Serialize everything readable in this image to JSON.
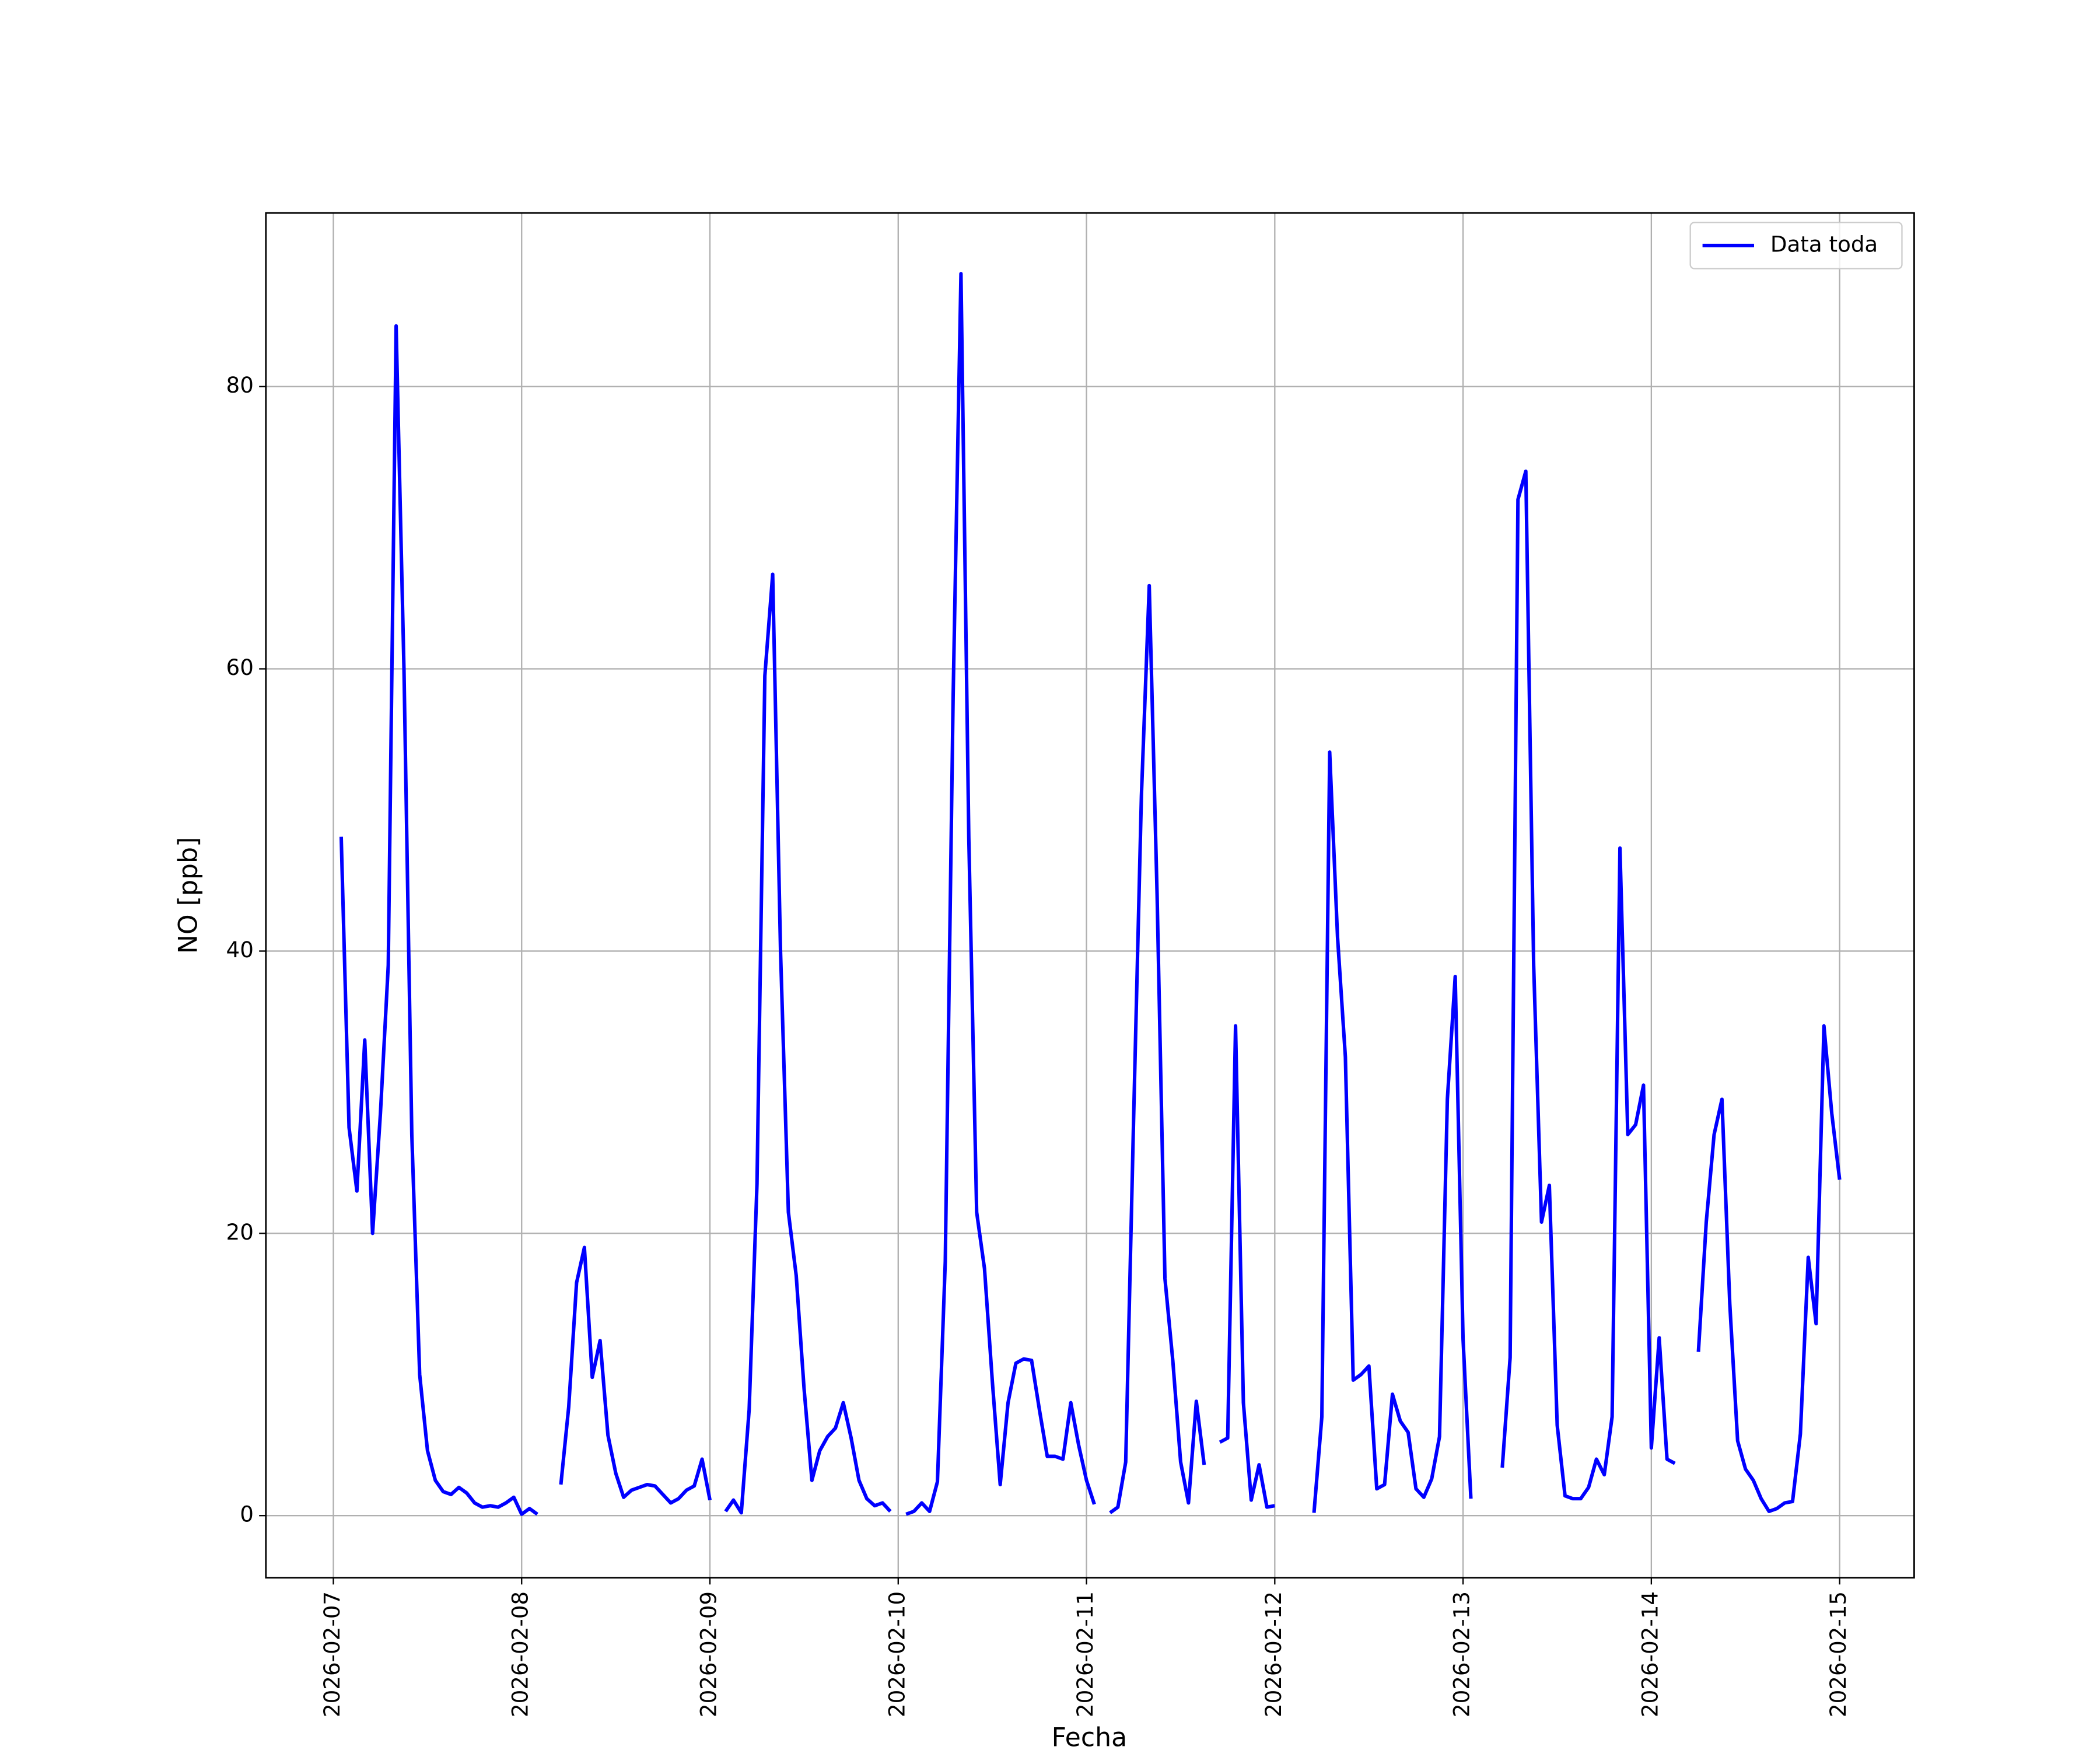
{
  "chart_data": {
    "type": "line",
    "x_label": "Fecha",
    "y_label": "NO [ppb]",
    "xlim": [
      "2026-02-06T15:24",
      "2026-02-15T09:30"
    ],
    "xticks": [
      "2026-02-07",
      "2026-02-08",
      "2026-02-09",
      "2026-02-10",
      "2026-02-11",
      "2026-02-12",
      "2026-02-13",
      "2026-02-14",
      "2026-02-15"
    ],
    "ylim": [
      -4.4,
      92.3
    ],
    "yticks": [
      0,
      20,
      40,
      60,
      80
    ],
    "grid": true,
    "legend": "upper right",
    "x": [
      "2026-02-07T01:00",
      "2026-02-07T02:00",
      "2026-02-07T03:00",
      "2026-02-07T04:00",
      "2026-02-07T05:00",
      "2026-02-07T06:00",
      "2026-02-07T07:00",
      "2026-02-07T08:00",
      "2026-02-07T09:00",
      "2026-02-07T10:00",
      "2026-02-07T11:00",
      "2026-02-07T12:00",
      "2026-02-07T13:00",
      "2026-02-07T14:00",
      "2026-02-07T15:00",
      "2026-02-07T16:00",
      "2026-02-07T17:00",
      "2026-02-07T18:00",
      "2026-02-07T19:00",
      "2026-02-07T20:00",
      "2026-02-07T21:00",
      "2026-02-07T22:00",
      "2026-02-07T23:00",
      "2026-02-08T00:00",
      "2026-02-08T01:00",
      "2026-02-08T02:00",
      "2026-02-08T03:00",
      "2026-02-08T04:00",
      "2026-02-08T05:00",
      "2026-02-08T06:00",
      "2026-02-08T07:00",
      "2026-02-08T08:00",
      "2026-02-08T09:00",
      "2026-02-08T10:00",
      "2026-02-08T11:00",
      "2026-02-08T12:00",
      "2026-02-08T13:00",
      "2026-02-08T14:00",
      "2026-02-08T15:00",
      "2026-02-08T16:00",
      "2026-02-08T17:00",
      "2026-02-08T18:00",
      "2026-02-08T19:00",
      "2026-02-08T20:00",
      "2026-02-08T21:00",
      "2026-02-08T22:00",
      "2026-02-08T23:00",
      "2026-02-09T00:00",
      "2026-02-09T01:00",
      "2026-02-09T02:00",
      "2026-02-09T03:00",
      "2026-02-09T04:00",
      "2026-02-09T05:00",
      "2026-02-09T06:00",
      "2026-02-09T07:00",
      "2026-02-09T08:00",
      "2026-02-09T09:00",
      "2026-02-09T10:00",
      "2026-02-09T11:00",
      "2026-02-09T12:00",
      "2026-02-09T13:00",
      "2026-02-09T14:00",
      "2026-02-09T15:00",
      "2026-02-09T16:00",
      "2026-02-09T17:00",
      "2026-02-09T18:00",
      "2026-02-09T19:00",
      "2026-02-09T20:00",
      "2026-02-09T21:00",
      "2026-02-09T22:00",
      "2026-02-09T23:00",
      "2026-02-10T00:00",
      "2026-02-10T01:00",
      "2026-02-10T02:00",
      "2026-02-10T03:00",
      "2026-02-10T04:00",
      "2026-02-10T05:00",
      "2026-02-10T06:00",
      "2026-02-10T07:00",
      "2026-02-10T08:00",
      "2026-02-10T09:00",
      "2026-02-10T10:00",
      "2026-02-10T11:00",
      "2026-02-10T12:00",
      "2026-02-10T13:00",
      "2026-02-10T14:00",
      "2026-02-10T15:00",
      "2026-02-10T16:00",
      "2026-02-10T17:00",
      "2026-02-10T18:00",
      "2026-02-10T19:00",
      "2026-02-10T20:00",
      "2026-02-10T21:00",
      "2026-02-10T22:00",
      "2026-02-10T23:00",
      "2026-02-11T00:00",
      "2026-02-11T01:00",
      "2026-02-11T02:00",
      "2026-02-11T03:00",
      "2026-02-11T04:00",
      "2026-02-11T05:00",
      "2026-02-11T06:00",
      "2026-02-11T07:00",
      "2026-02-11T08:00",
      "2026-02-11T09:00",
      "2026-02-11T10:00",
      "2026-02-11T11:00",
      "2026-02-11T12:00",
      "2026-02-11T13:00",
      "2026-02-11T14:00",
      "2026-02-11T15:00",
      "2026-02-11T16:00",
      "2026-02-11T17:00",
      "2026-02-11T18:00",
      "2026-02-11T19:00",
      "2026-02-11T20:00",
      "2026-02-11T21:00",
      "2026-02-11T22:00",
      "2026-02-11T23:00",
      "2026-02-12T00:00",
      "2026-02-12T01:00",
      "2026-02-12T02:00",
      "2026-02-12T03:00",
      "2026-02-12T04:00",
      "2026-02-12T05:00",
      "2026-02-12T06:00",
      "2026-02-12T07:00",
      "2026-02-12T08:00",
      "2026-02-12T09:00",
      "2026-02-12T10:00",
      "2026-02-12T11:00",
      "2026-02-12T12:00",
      "2026-02-12T13:00",
      "2026-02-12T14:00",
      "2026-02-12T15:00",
      "2026-02-12T16:00",
      "2026-02-12T17:00",
      "2026-02-12T18:00",
      "2026-02-12T19:00",
      "2026-02-12T20:00",
      "2026-02-12T21:00",
      "2026-02-12T22:00",
      "2026-02-12T23:00",
      "2026-02-13T00:00",
      "2026-02-13T01:00",
      "2026-02-13T02:00",
      "2026-02-13T03:00",
      "2026-02-13T04:00",
      "2026-02-13T05:00",
      "2026-02-13T06:00",
      "2026-02-13T07:00",
      "2026-02-13T08:00",
      "2026-02-13T09:00",
      "2026-02-13T10:00",
      "2026-02-13T11:00",
      "2026-02-13T12:00",
      "2026-02-13T13:00",
      "2026-02-13T14:00",
      "2026-02-13T15:00",
      "2026-02-13T16:00",
      "2026-02-13T17:00",
      "2026-02-13T18:00",
      "2026-02-13T19:00",
      "2026-02-13T20:00",
      "2026-02-13T21:00",
      "2026-02-13T22:00",
      "2026-02-13T23:00",
      "2026-02-14T00:00",
      "2026-02-14T01:00",
      "2026-02-14T02:00",
      "2026-02-14T03:00",
      "2026-02-14T04:00",
      "2026-02-14T05:00",
      "2026-02-14T06:00",
      "2026-02-14T07:00",
      "2026-02-14T08:00",
      "2026-02-14T09:00",
      "2026-02-14T10:00",
      "2026-02-14T11:00",
      "2026-02-14T12:00",
      "2026-02-14T13:00",
      "2026-02-14T14:00",
      "2026-02-14T15:00",
      "2026-02-14T16:00",
      "2026-02-14T17:00",
      "2026-02-14T18:00",
      "2026-02-14T19:00",
      "2026-02-14T20:00",
      "2026-02-14T21:00",
      "2026-02-14T22:00",
      "2026-02-14T23:00",
      "2026-02-15T00:00"
    ],
    "series": [
      {
        "name": "Data toda",
        "color": "#0000ff",
        "values": [
          48.1,
          27.5,
          23,
          33.7,
          20,
          28.5,
          39,
          84.3,
          60,
          27,
          10,
          4.6,
          2.5,
          1.7,
          1.5,
          2.0,
          1.6,
          0.9,
          0.6,
          0.7,
          0.6,
          0.9,
          1.3,
          0.1,
          0.5,
          0.1,
          null,
          null,
          2.2,
          7.7,
          16.5,
          19,
          9.8,
          12.4,
          5.7,
          3,
          1.3,
          1.8,
          2.0,
          2.2,
          2.1,
          1.5,
          0.9,
          1.2,
          1.8,
          2.1,
          4.0,
          1.1,
          null,
          0.3,
          1.1,
          0.2,
          7.5,
          23.5,
          59.5,
          66.7,
          40,
          21.5,
          17,
          9,
          2.5,
          4.6,
          5.6,
          6.2,
          8,
          5.5,
          2.5,
          1.2,
          0.7,
          0.9,
          0.3,
          null,
          0.1,
          0.3,
          0.9,
          0.3,
          2.4,
          18,
          58,
          88,
          48,
          21.5,
          17.5,
          9.5,
          2.2,
          8,
          10.8,
          11.1,
          11.0,
          7.5,
          4.2,
          4.2,
          4.0,
          8.0,
          5.0,
          2.5,
          0.8,
          null,
          0.2,
          0.6,
          3.8,
          28,
          51,
          65.9,
          44,
          16.8,
          11,
          3.8,
          0.9,
          8.1,
          3.6,
          null,
          5.2,
          5.5,
          34.7,
          8,
          1.1,
          3.6,
          0.6,
          0.7,
          null,
          null,
          null,
          null,
          0.2,
          7,
          54.1,
          41,
          32.5,
          9.6,
          10,
          10.6,
          1.9,
          2.2,
          8.6,
          6.7,
          5.9,
          1.9,
          1.3,
          2.6,
          5.6,
          29.5,
          38.2,
          12.5,
          1.2,
          null,
          null,
          null,
          3.4,
          11.2,
          72,
          74,
          39,
          20.8,
          23.4,
          6.4,
          1.4,
          1.2,
          1.2,
          2,
          4,
          2.9,
          7,
          47.3,
          27,
          27.7,
          30.5,
          4.8,
          12.6,
          4,
          3.7,
          null,
          null,
          11.6,
          20.8,
          27,
          29.5,
          15,
          5.3,
          3.3,
          2.5,
          1.2,
          0.3,
          0.5,
          0.9,
          1.0,
          5.8,
          18.3,
          13.6,
          34.7,
          28.5,
          23.8
        ]
      }
    ]
  }
}
